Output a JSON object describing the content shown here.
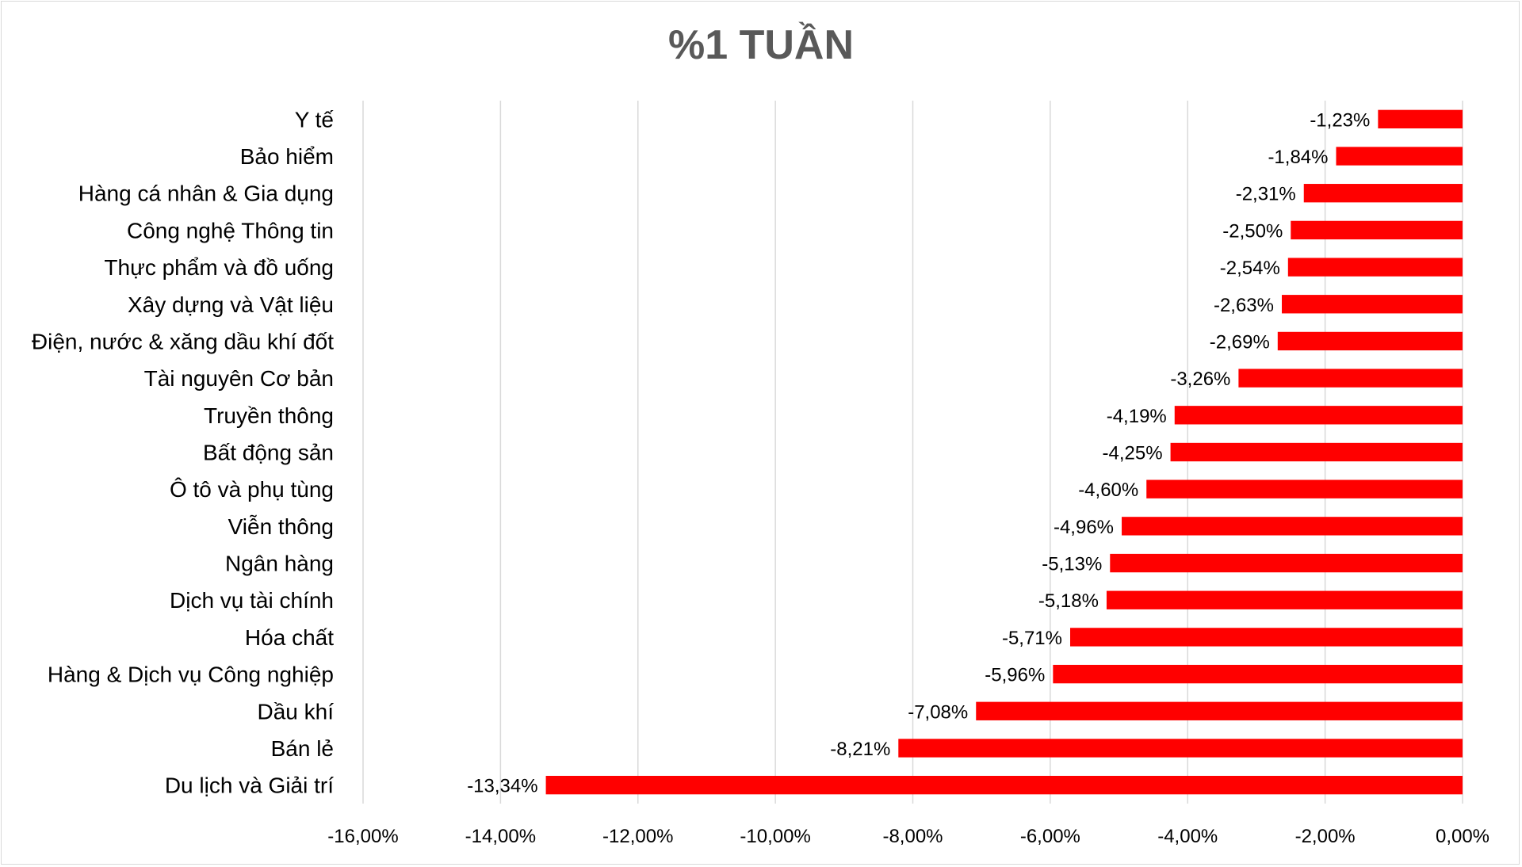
{
  "chart_data": {
    "type": "bar",
    "orientation": "horizontal",
    "title": "%1 TUẦN",
    "categories": [
      "Y tế",
      "Bảo hiểm",
      "Hàng cá nhân & Gia dụng",
      "Công nghệ Thông tin",
      "Thực phẩm và đồ uống",
      "Xây dựng và Vật liệu",
      "Điện, nước & xăng dầu khí đốt",
      "Tài nguyên Cơ bản",
      "Truyền thông",
      "Bất động sản",
      "Ô tô và phụ tùng",
      "Viễn thông",
      "Ngân hàng",
      "Dịch vụ tài chính",
      "Hóa chất",
      "Hàng & Dịch vụ Công nghiệp",
      "Dầu khí",
      "Bán lẻ",
      "Du lịch và Giải trí"
    ],
    "values": [
      -1.23,
      -1.84,
      -2.31,
      -2.5,
      -2.54,
      -2.63,
      -2.69,
      -3.26,
      -4.19,
      -4.25,
      -4.6,
      -4.96,
      -5.13,
      -5.18,
      -5.71,
      -5.96,
      -7.08,
      -8.21,
      -13.34
    ],
    "data_labels": [
      "-1,23%",
      "-1,84%",
      "-2,31%",
      "-2,50%",
      "-2,54%",
      "-2,63%",
      "-2,69%",
      "-3,26%",
      "-4,19%",
      "-4,25%",
      "-4,60%",
      "-4,96%",
      "-5,13%",
      "-5,18%",
      "-5,71%",
      "-5,96%",
      "-7,08%",
      "-8,21%",
      "-13,34%"
    ],
    "xlim": [
      -16,
      0
    ],
    "x_ticks": [
      -16,
      -14,
      -12,
      -10,
      -8,
      -6,
      -4,
      -2,
      0
    ],
    "x_tick_labels": [
      "-16,00%",
      "-14,00%",
      "-12,00%",
      "-10,00%",
      "-8,00%",
      "-6,00%",
      "-4,00%",
      "-2,00%",
      "0,00%"
    ],
    "grid": "vertical",
    "bar_color": "#ff0000",
    "grid_color": "#d9d9d9",
    "title_color": "#595959"
  }
}
